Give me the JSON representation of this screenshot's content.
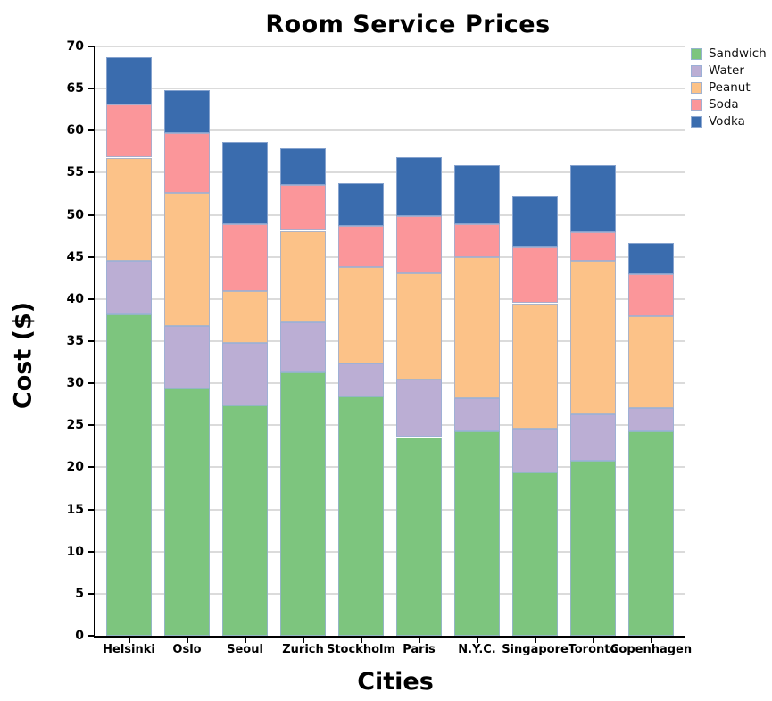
{
  "chart": {
    "title": "Room Service Prices",
    "xlabel": "Cities",
    "ylabel": "Cost ($)"
  },
  "chart_data": {
    "type": "bar",
    "stacked": true,
    "title": "Room Service Prices",
    "xlabel": "Cities",
    "ylabel": "Cost ($)",
    "categories": [
      "Helsinki",
      "Oslo",
      "Seoul",
      "Zurich",
      "Stockholm",
      "Paris",
      "N.Y.C.",
      "Singapore",
      "Toronto",
      "Copenhagen"
    ],
    "series": [
      {
        "name": "Sandwich",
        "color": "#7DC57E",
        "values": [
          38.2,
          29.4,
          27.4,
          31.3,
          28.4,
          23.6,
          24.3,
          19.4,
          20.8,
          24.3
        ]
      },
      {
        "name": "Water",
        "color": "#BBAED4",
        "values": [
          6.4,
          7.4,
          7.4,
          5.9,
          4.0,
          6.8,
          3.9,
          5.2,
          5.5,
          2.7
        ]
      },
      {
        "name": "Peanut",
        "color": "#FCC288",
        "values": [
          12.2,
          15.8,
          6.1,
          10.9,
          11.4,
          12.7,
          16.8,
          14.9,
          18.2,
          11.0
        ]
      },
      {
        "name": "Soda",
        "color": "#FB969A",
        "values": [
          6.3,
          7.1,
          8.0,
          5.5,
          4.9,
          6.8,
          3.9,
          6.6,
          3.4,
          5.0
        ]
      },
      {
        "name": "Vodka",
        "color": "#3A6CAE",
        "values": [
          5.6,
          5.1,
          9.8,
          4.3,
          5.1,
          7.0,
          7.0,
          6.1,
          8.0,
          3.7
        ]
      }
    ],
    "stack_totals": [
      68.7,
      64.8,
      58.7,
      57.9,
      53.8,
      56.9,
      55.9,
      52.2,
      55.9,
      46.7
    ],
    "ylim": [
      0,
      70
    ],
    "ytick_step": 5,
    "yticks": [
      0,
      5,
      10,
      15,
      20,
      25,
      30,
      35,
      40,
      45,
      50,
      55,
      60,
      65,
      70
    ],
    "grid": true,
    "grid_color": "#DBDBDB",
    "bar_edge_color": "#98B0D6",
    "legend_position": "upper right, outside plot",
    "legend_entries": [
      "Sandwich",
      "Water",
      "Peanut",
      "Soda",
      "Vodka"
    ]
  }
}
